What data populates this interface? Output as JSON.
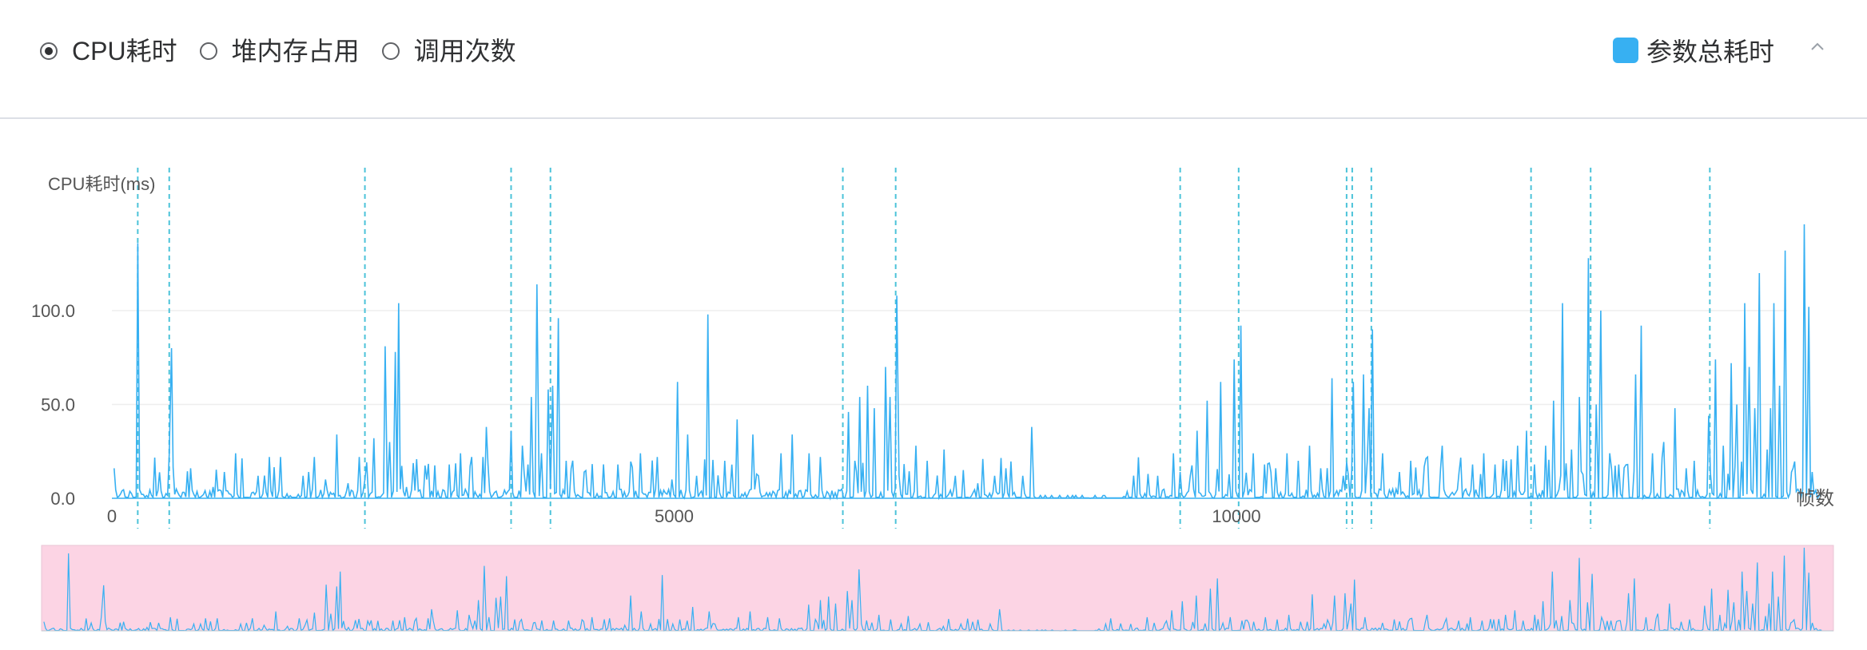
{
  "controls": {
    "metrics": [
      {
        "label": "CPU耗时",
        "checked": true
      },
      {
        "label": "堆内存占用",
        "checked": false
      },
      {
        "label": "调用次数",
        "checked": false
      }
    ],
    "legend_label": "参数总耗时",
    "collapse_icon": "chevron-up-icon"
  },
  "colors": {
    "series": "#37b0f2",
    "markers": "#4cc3d9",
    "zoom_fill": "#fcd4e4",
    "grid": "#eeeeee",
    "axis": "#333333"
  },
  "chart_data": {
    "type": "line",
    "title": "",
    "ylabel": "CPU耗时(ms)",
    "xlabel": "帧数",
    "xlim": [
      0,
      15000
    ],
    "ylim": [
      0,
      150
    ],
    "y_ticks": [
      "0.0",
      "50.0",
      "100.0"
    ],
    "x_ticks": [
      "0",
      "5000",
      "10000"
    ],
    "grid": true,
    "legend": "top-right",
    "marker_lines_x": [
      230,
      510,
      2250,
      3550,
      3900,
      6500,
      6970,
      9500,
      10020,
      10980,
      11030,
      11200,
      12620,
      13150,
      14210
    ],
    "series": [
      {
        "name": "参数总耗时",
        "points": [
          [
            20,
            16
          ],
          [
            230,
            136
          ],
          [
            280,
            2
          ],
          [
            510,
            24
          ],
          [
            530,
            80
          ],
          [
            700,
            16
          ],
          [
            900,
            6
          ],
          [
            1000,
            14
          ],
          [
            1100,
            24
          ],
          [
            1300,
            12
          ],
          [
            1400,
            22
          ],
          [
            1500,
            22
          ],
          [
            1700,
            12
          ],
          [
            1750,
            14
          ],
          [
            1800,
            22
          ],
          [
            1900,
            10
          ],
          [
            2000,
            34
          ],
          [
            2100,
            8
          ],
          [
            2200,
            22
          ],
          [
            2250,
            10
          ],
          [
            2330,
            32
          ],
          [
            2430,
            81
          ],
          [
            2470,
            30
          ],
          [
            2520,
            78
          ],
          [
            2550,
            104
          ],
          [
            2620,
            6
          ],
          [
            2800,
            10
          ],
          [
            3000,
            18
          ],
          [
            3100,
            24
          ],
          [
            3200,
            22
          ],
          [
            3300,
            22
          ],
          [
            3330,
            38
          ],
          [
            3550,
            36
          ],
          [
            3650,
            28
          ],
          [
            3700,
            18
          ],
          [
            3730,
            54
          ],
          [
            3780,
            114
          ],
          [
            3820,
            24
          ],
          [
            3880,
            58
          ],
          [
            3920,
            60
          ],
          [
            3970,
            96
          ],
          [
            4040,
            20
          ],
          [
            4200,
            14
          ],
          [
            4500,
            18
          ],
          [
            4700,
            24
          ],
          [
            4850,
            22
          ],
          [
            4980,
            10
          ],
          [
            5030,
            62
          ],
          [
            5120,
            34
          ],
          [
            5200,
            12
          ],
          [
            5300,
            98
          ],
          [
            5450,
            20
          ],
          [
            5560,
            42
          ],
          [
            5700,
            34
          ],
          [
            5750,
            12
          ],
          [
            5950,
            24
          ],
          [
            6050,
            34
          ],
          [
            6200,
            24
          ],
          [
            6300,
            22
          ],
          [
            6550,
            46
          ],
          [
            6650,
            54
          ],
          [
            6720,
            60
          ],
          [
            6780,
            48
          ],
          [
            6880,
            70
          ],
          [
            6920,
            54
          ],
          [
            6980,
            108
          ],
          [
            7000,
            12
          ],
          [
            7150,
            28
          ],
          [
            7250,
            20
          ],
          [
            7400,
            26
          ],
          [
            7500,
            12
          ],
          [
            7700,
            8
          ],
          [
            7850,
            12
          ],
          [
            7950,
            16
          ],
          [
            8100,
            12
          ],
          [
            8180,
            38
          ],
          [
            8200,
            1
          ],
          [
            8700,
            0
          ],
          [
            9000,
            1
          ],
          [
            9300,
            12
          ],
          [
            9440,
            24
          ],
          [
            9500,
            14
          ],
          [
            9590,
            12
          ],
          [
            9650,
            36
          ],
          [
            9740,
            52
          ],
          [
            9860,
            62
          ],
          [
            9980,
            74
          ],
          [
            10040,
            92
          ],
          [
            10150,
            24
          ],
          [
            10250,
            18
          ],
          [
            10350,
            16
          ],
          [
            10450,
            24
          ],
          [
            10550,
            20
          ],
          [
            10650,
            28
          ],
          [
            10750,
            16
          ],
          [
            10850,
            64
          ],
          [
            10950,
            12
          ],
          [
            11040,
            62
          ],
          [
            11130,
            66
          ],
          [
            11180,
            48
          ],
          [
            11210,
            90
          ],
          [
            11300,
            24
          ],
          [
            11450,
            14
          ],
          [
            11550,
            20
          ],
          [
            11700,
            22
          ],
          [
            11830,
            28
          ],
          [
            11980,
            14
          ],
          [
            12100,
            18
          ],
          [
            12200,
            24
          ],
          [
            12300,
            18
          ],
          [
            12400,
            20
          ],
          [
            12500,
            28
          ],
          [
            12580,
            36
          ],
          [
            12650,
            18
          ],
          [
            12750,
            28
          ],
          [
            12820,
            52
          ],
          [
            12900,
            104
          ],
          [
            12980,
            26
          ],
          [
            13050,
            54
          ],
          [
            13130,
            128
          ],
          [
            13200,
            50
          ],
          [
            13240,
            100
          ],
          [
            13320,
            24
          ],
          [
            13400,
            18
          ],
          [
            13480,
            18
          ],
          [
            13550,
            66
          ],
          [
            13600,
            92
          ],
          [
            13700,
            24
          ],
          [
            13800,
            30
          ],
          [
            13900,
            48
          ],
          [
            14000,
            16
          ],
          [
            14200,
            44
          ],
          [
            14260,
            74
          ],
          [
            14330,
            28
          ],
          [
            14400,
            72
          ],
          [
            14450,
            50
          ],
          [
            14520,
            104
          ],
          [
            14560,
            70
          ],
          [
            14610,
            48
          ],
          [
            14650,
            120
          ],
          [
            14720,
            26
          ],
          [
            14750,
            48
          ],
          [
            14780,
            104
          ],
          [
            14830,
            60
          ],
          [
            14880,
            132
          ],
          [
            14950,
            16
          ],
          [
            15050,
            146
          ],
          [
            15090,
            102
          ],
          [
            15120,
            14
          ],
          [
            15200,
            1
          ]
        ]
      }
    ]
  }
}
